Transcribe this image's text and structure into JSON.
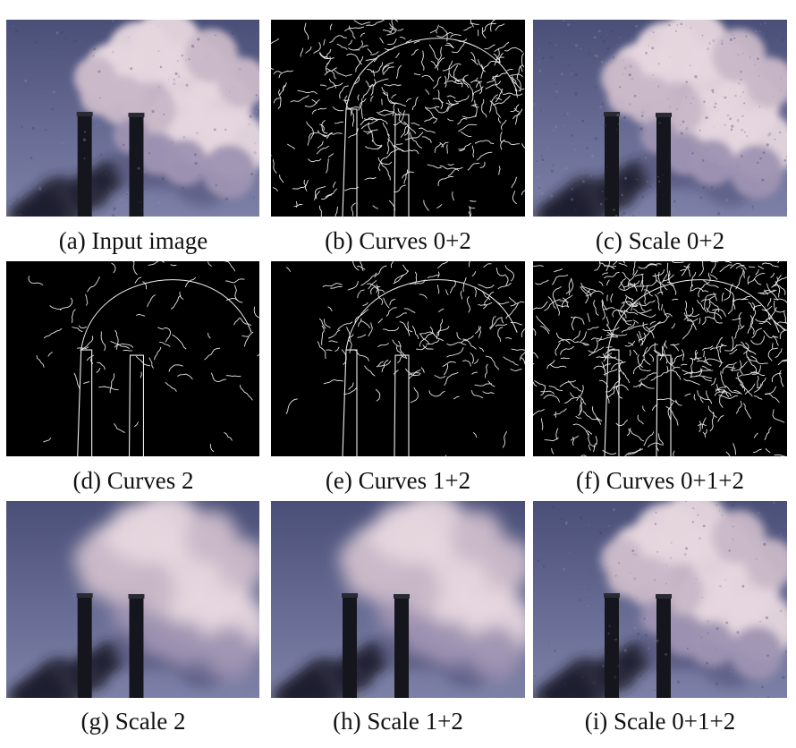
{
  "panels": [
    {
      "kind": "photo",
      "variant": "input",
      "caption": "(a) Input image"
    },
    {
      "kind": "edges",
      "density": "dense",
      "caption": "(b) Curves 0+2"
    },
    {
      "kind": "photo",
      "variant": "noisy",
      "caption": "(c) Scale 0+2"
    },
    {
      "kind": "edges",
      "density": "sparse",
      "caption": "(d) Curves 2"
    },
    {
      "kind": "edges",
      "density": "medium",
      "caption": "(e) Curves 1+2"
    },
    {
      "kind": "edges",
      "density": "full",
      "caption": "(f) Curves 0+1+2"
    },
    {
      "kind": "photo",
      "variant": "smooth",
      "caption": "(g) Scale 2"
    },
    {
      "kind": "photo",
      "variant": "smooth",
      "caption": "(h) Scale 1+2"
    },
    {
      "kind": "photo",
      "variant": "detailed",
      "caption": "(i) Scale 0+1+2"
    }
  ]
}
